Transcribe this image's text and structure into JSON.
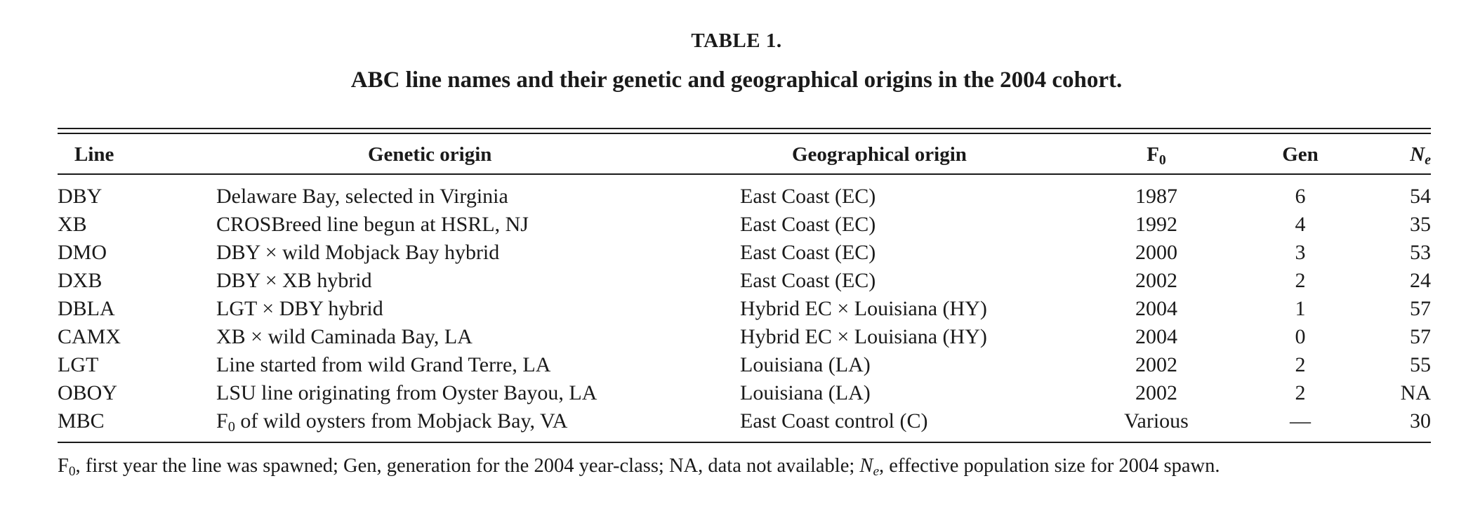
{
  "table": {
    "label": "TABLE 1.",
    "caption": "ABC line names and their genetic and geographical origins in the 2004 cohort.",
    "headers": {
      "line": "Line",
      "genetic_origin": "Genetic origin",
      "geographical_origin": "Geographical origin",
      "f0_base": "F",
      "f0_sub": "0",
      "gen": "Gen",
      "ne_base": "N",
      "ne_sub": "e"
    },
    "rows": [
      {
        "line": "DBY",
        "genetic": "Delaware Bay, selected in Virginia",
        "geo": "East Coast (EC)",
        "f0": "1987",
        "gen": "6",
        "ne": "54"
      },
      {
        "line": "XB",
        "genetic": "CROSBreed line begun at HSRL, NJ",
        "geo": "East Coast (EC)",
        "f0": "1992",
        "gen": "4",
        "ne": "35"
      },
      {
        "line": "DMO",
        "genetic": "DBY × wild Mobjack Bay hybrid",
        "geo": "East Coast (EC)",
        "f0": "2000",
        "gen": "3",
        "ne": "53"
      },
      {
        "line": "DXB",
        "genetic": "DBY × XB hybrid",
        "geo": "East Coast (EC)",
        "f0": "2002",
        "gen": "2",
        "ne": "24"
      },
      {
        "line": "DBLA",
        "genetic": "LGT × DBY hybrid",
        "geo": "Hybrid EC × Louisiana (HY)",
        "f0": "2004",
        "gen": "1",
        "ne": "57"
      },
      {
        "line": "CAMX",
        "genetic": "XB × wild Caminada Bay, LA",
        "geo": "Hybrid EC × Louisiana (HY)",
        "f0": "2004",
        "gen": "0",
        "ne": "57"
      },
      {
        "line": "LGT",
        "genetic": "Line started from wild Grand Terre, LA",
        "geo": "Louisiana (LA)",
        "f0": "2002",
        "gen": "2",
        "ne": "55"
      },
      {
        "line": "OBOY",
        "genetic": "LSU line originating from Oyster Bayou, LA",
        "geo": "Louisiana (LA)",
        "f0": "2002",
        "gen": "2",
        "ne": "NA"
      },
      {
        "line": "MBC",
        "genetic_base": "F",
        "genetic_sub": "0",
        "genetic_rest": " of wild oysters from Mobjack Bay, VA",
        "geo": "East Coast control (C)",
        "f0": "Various",
        "gen": "—",
        "ne": "30"
      }
    ],
    "footnote": {
      "part1_base": "F",
      "part1_sub": "0",
      "part2": ", first year the line was spawned; Gen, generation for the 2004 year-class; NA, data not available; ",
      "ne_base": "N",
      "ne_sub": "e",
      "part3": ", effective population size for 2004 spawn."
    }
  }
}
